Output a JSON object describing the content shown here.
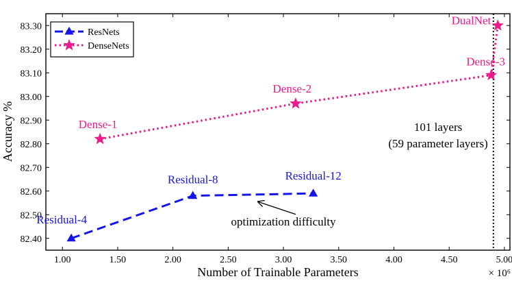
{
  "chart_data": {
    "type": "line",
    "xlabel": "Number of Trainable Parameters",
    "x_multiplier_label": "× 10⁶",
    "ylabel": "Accuracy %",
    "xlim": [
      0.85,
      5.05
    ],
    "ylim": [
      82.35,
      83.35
    ],
    "x_ticks": [
      1.0,
      1.5,
      2.0,
      2.5,
      3.0,
      3.5,
      4.0,
      4.5,
      5.0
    ],
    "x_tick_labels": [
      "1.00",
      "1.50",
      "2.00",
      "2.50",
      "3.00",
      "3.50",
      "4.00",
      "4.50",
      "5.00"
    ],
    "y_ticks": [
      82.4,
      82.5,
      82.6,
      82.7,
      82.8,
      82.9,
      83.0,
      83.1,
      83.2,
      83.3
    ],
    "y_tick_labels": [
      "82.40",
      "82.50",
      "82.60",
      "82.70",
      "82.80",
      "82.90",
      "83.00",
      "83.10",
      "83.20",
      "83.30"
    ],
    "legend_position": "top-left",
    "series": [
      {
        "name": "ResNets",
        "color": "#1515e8",
        "line_style": "dashed",
        "marker": "triangle",
        "points": [
          {
            "x": 1.08,
            "y": 82.4,
            "label": "Residual-4"
          },
          {
            "x": 2.18,
            "y": 82.58,
            "label": "Residual-8"
          },
          {
            "x": 3.27,
            "y": 82.59,
            "label": "Residual-12"
          }
        ]
      },
      {
        "name": "DenseNets",
        "color": "#ec1a8c",
        "line_style": "dotted",
        "marker": "star",
        "points": [
          {
            "x": 1.34,
            "y": 82.82,
            "label": "Dense-1"
          },
          {
            "x": 3.11,
            "y": 82.97,
            "label": "Dense-2"
          },
          {
            "x": 4.88,
            "y": 83.09,
            "label": "Dense-3"
          },
          {
            "x": 4.94,
            "y": 83.3,
            "label": "DualNet"
          }
        ]
      }
    ],
    "vertical_line": {
      "x": 4.9,
      "style": "dotted",
      "color": "#000000"
    },
    "annotations": [
      {
        "text": "101 layers",
        "x": 4.4,
        "y": 82.855
      },
      {
        "text": "(59 parameter layers)",
        "x": 4.4,
        "y": 82.785
      },
      {
        "text": "optimization difficulty",
        "x": 3.0,
        "y": 82.455,
        "arrow_to": {
          "x": 2.77,
          "y": 82.555
        }
      }
    ]
  }
}
